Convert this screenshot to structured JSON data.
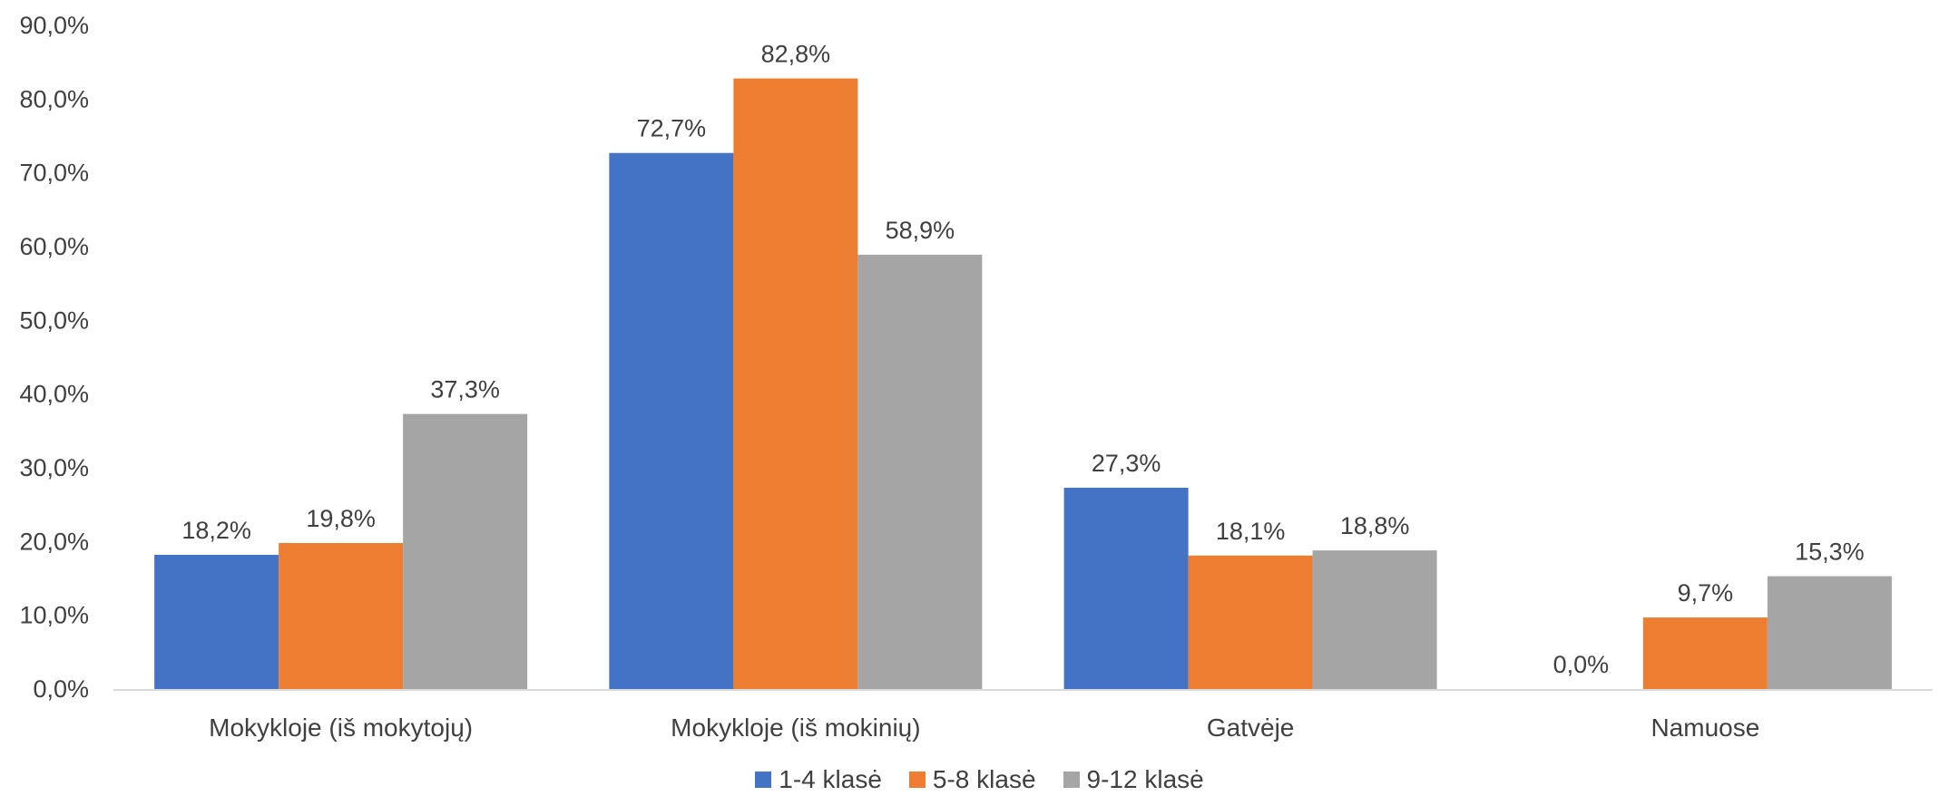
{
  "chart_data": {
    "type": "bar",
    "title": "",
    "xlabel": "",
    "ylabel": "",
    "categories": [
      "Mokykloje (iš mokytojų)",
      "Mokykloje (iš mokinių)",
      "Gatvėje",
      "Namuose"
    ],
    "series": [
      {
        "name": "1-4 klasė",
        "color": "#4472C4",
        "values": [
          18.2,
          72.7,
          27.3,
          0.0
        ],
        "labels": [
          "18,2%",
          "72,7%",
          "27,3%",
          "0,0%"
        ]
      },
      {
        "name": "5-8 klasė",
        "color": "#ED7D31",
        "values": [
          19.8,
          82.8,
          18.1,
          9.7
        ],
        "labels": [
          "19,8%",
          "82,8%",
          "18,1%",
          "9,7%"
        ]
      },
      {
        "name": "9-12 klasė",
        "color": "#A5A5A5",
        "values": [
          37.3,
          58.9,
          18.8,
          15.3
        ],
        "labels": [
          "37,3%",
          "58,9%",
          "18,8%",
          "15,3%"
        ]
      }
    ],
    "ylim": [
      0,
      90
    ],
    "yticks": [
      0,
      10,
      20,
      30,
      40,
      50,
      60,
      70,
      80,
      90
    ],
    "ytick_labels": [
      "0,0%",
      "10,0%",
      "20,0%",
      "30,0%",
      "40,0%",
      "50,0%",
      "60,0%",
      "70,0%",
      "80,0%",
      "90,0%"
    ],
    "grid": false,
    "legend_position": "bottom"
  }
}
